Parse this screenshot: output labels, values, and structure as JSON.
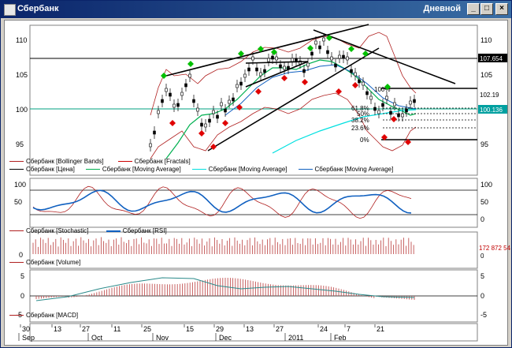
{
  "window": {
    "title": "Сбербанк",
    "period": "Дневной",
    "minimize_glyph": "_",
    "maximize_glyph": "□",
    "close_glyph": "×"
  },
  "panes": {
    "price": {
      "y_ticks": [
        "110",
        "105",
        "100",
        "95"
      ],
      "price_labels": {
        "line_107": "107.654",
        "last": "102.19",
        "ma": "100.136"
      },
      "fib_labels": [
        "100%",
        "61.8%",
        "50%",
        "38.2%",
        "23.6%",
        "0%"
      ],
      "legend": [
        {
          "text": "Сбербанк [Bollinger Bands]",
          "color": "#b02020"
        },
        {
          "text": "Сбербанк [Fractals]",
          "color": "#cc0000"
        },
        {
          "text": "Сбербанк [Цена]",
          "color": "#000000"
        },
        {
          "text": "Сбербанк [Moving Average]",
          "color": "#00b050"
        },
        {
          "text": "Сбербанк [Moving Average]",
          "color": "#00e0e0"
        },
        {
          "text": "Сбербанк [Moving Average]",
          "color": "#1060c0"
        }
      ]
    },
    "oscillator": {
      "y_ticks": [
        "100",
        "50",
        "0"
      ],
      "legend": [
        {
          "text": "Сбербанк [Stochastic]",
          "color": "#b02020"
        },
        {
          "text": "Сбербанк [RSI]",
          "color": "#1060c0"
        }
      ]
    },
    "volume": {
      "y_ticks": [
        "0"
      ],
      "right_label": "172 872 54",
      "right_zero": "0",
      "legend": [
        {
          "text": "Сбербанк [Volume]",
          "color": "#b02020"
        }
      ]
    },
    "macd": {
      "y_ticks": [
        "5",
        "0",
        "-5"
      ],
      "legend": [
        {
          "text": "Сбербанк [MACD]",
          "color": "#b02020"
        }
      ]
    }
  },
  "x_axis": {
    "days": [
      "30",
      "13",
      "27",
      "11",
      "25",
      "15",
      "29",
      "13",
      "27",
      "24",
      "7",
      "21"
    ],
    "months": [
      "Sep",
      "Oct",
      "Nov",
      "Dec",
      "2011",
      "Feb"
    ]
  },
  "colors": {
    "bollinger": "#b02020",
    "ma_green": "#00b050",
    "ma_cyan": "#00e0e0",
    "ma_blue": "#1060c0",
    "fractal_up": "#00c000",
    "fractal_down": "#e00000",
    "level_line": "#00a080"
  }
}
